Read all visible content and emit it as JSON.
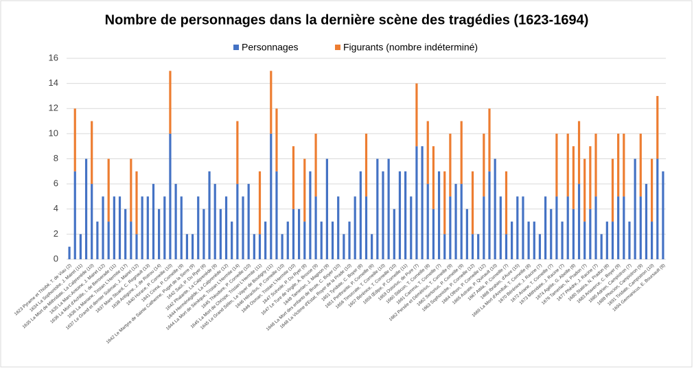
{
  "chart_data": {
    "type": "stacked_bar",
    "title": "Nombre de personnages dans la dernière scène des tragédies (1623-1694)",
    "categories": [
      "1623 Pyrame et Thisbé, T. de Viau (2)",
      null,
      "1634 La Sophonisbe, J. Mairet (11)",
      null,
      "1635 La Mort de Mithridate, La Calprenède (10)",
      null,
      "1635 La Marc-Antoine, J. Mairet (12)",
      null,
      "1636 La Mort d'Achille, I. de Benserade (11)",
      null,
      "1636 La Mariane, Tristan L'Hermite (17)",
      null,
      "1637 Le Grand et dernier Soliman, J. Mairet (12)",
      null,
      "1637 Mare Stuard, C. Regnault (13)",
      null,
      "1638 Antigone, J. de Rotrou (14)",
      null,
      "1640 Horace, P. Corneille (10)",
      null,
      "1641 Cinna, P. Corneille (9)",
      null,
      "1642 Le Martyre de Sainte Catherine, Puget de la Serre (9)",
      null,
      "1642 Saül, P. Du Ryer (6)",
      null,
      "1642 Phalante, La Calprenède (9)",
      null,
      "1644 Herménégilde, La Calprenède (12)",
      null,
      "1644 La Mort de Sénèque, Tristan L'Hermite (14)",
      null,
      "1645 Théodore, P. Corneille (10)",
      null,
      "1645 La Mort de Chrispe, Tristan L'Hermite (11)",
      null,
      "1645 Le Grand Sélim, Le Vayer de Boutigny (11)",
      null,
      "1646 Héraclius, P. Corneille (10)",
      null,
      "1646 Osman, Tristan L'Hermite (10)",
      null,
      "1647 Scévole, P. Du Ryer (8)",
      null,
      "1647 Le Ture de Virgile, A. Brosse (9)",
      null,
      "1648 Tamerlan, J. Magnon (9)",
      null,
      "1648 La Mort des enfants de Brute, C. Boyer (10)",
      null,
      "1648 La Victime d'Estat, Royer de la Prade (10)",
      null,
      "1651 Tyridate, C. Boyer (8)",
      null,
      "1651 Perthrarite, P. Corneille (6)",
      null,
      "1656 Timocrate, T. Corneille (10)",
      null,
      "1657 Bérénice, T. Corneille (10)",
      null,
      "1659 Œdipe, P. Corneille (11)",
      null,
      "1659 Ostorius, de Pure (7)",
      null,
      "1660 Stilicon, T. Corneille (8)",
      null,
      "1661 Camma, T. Corneille (7)",
      null,
      "1662 Persée et Démétrius, T. Corneille (9)",
      null,
      "1662 Sertorius, P. Corneille (9)",
      null,
      "1663 Sophonisbe, P. Corneille (12)",
      null,
      "1664 Othon, P. Corneille (12)",
      null,
      "1665 Astrate, P. Quinault (10)",
      null,
      "1667 Attila, P. Corneille (7)",
      null,
      "1668 Ibrahim, d'Aure (15)",
      null,
      "1669 La Mort d'Annibal, T. Corneille (8)",
      null,
      "1670 Bérénice, J. Racine (7)",
      null,
      "1672 Ariane, T. Corneille (7)",
      null,
      "1673 Mithridate, J. Racine (7)",
      null,
      "1674 Agélie, G. Abeille (8)",
      null,
      "1676 Tamerlan, N. Pradon (7)",
      null,
      "1677 Phèdre, J. Racine (7)",
      null,
      "1680 Statira, N. Pradon (8)",
      null,
      "1683 Artaxerce, C. Boyer (9)",
      null,
      "1685 Adrien, Campistron (7)",
      null,
      "1688 Phocion, Campistron (9)",
      null,
      "1691 Tiridate, Campistron (10)",
      null,
      "1694 Germanicus, E. Boursault (8)"
    ],
    "series": [
      {
        "name": "Personnages",
        "color": "#4472c4",
        "values": [
          1,
          7,
          2,
          8,
          6,
          3,
          5,
          3,
          5,
          5,
          4,
          3,
          2,
          5,
          5,
          6,
          4,
          5,
          10,
          6,
          5,
          2,
          2,
          5,
          4,
          7,
          6,
          4,
          5,
          3,
          6,
          5,
          6,
          2,
          2,
          3,
          10,
          7,
          2,
          3,
          4,
          4,
          3,
          7,
          5,
          3,
          8,
          3,
          5,
          2,
          3,
          5,
          7,
          5,
          2,
          8,
          7,
          8,
          4,
          7,
          7,
          5,
          9,
          9,
          6,
          4,
          7,
          2,
          5,
          6,
          6,
          4,
          2,
          2,
          5,
          7,
          8,
          5,
          2,
          3,
          5,
          5,
          3,
          3,
          2,
          5,
          4,
          5,
          3,
          5,
          4,
          6,
          3,
          4,
          5,
          2,
          3,
          3,
          5,
          5,
          3,
          8,
          5,
          6,
          3,
          8,
          7
        ]
      },
      {
        "name": "Figurants (nombre indéterminé)",
        "color": "#ed7d31",
        "values": [
          0,
          5,
          0,
          0,
          5,
          0,
          0,
          5,
          0,
          0,
          0,
          5,
          5,
          0,
          0,
          0,
          0,
          0,
          5,
          0,
          0,
          0,
          0,
          0,
          0,
          0,
          0,
          0,
          0,
          0,
          5,
          0,
          0,
          0,
          5,
          0,
          5,
          5,
          0,
          0,
          5,
          0,
          5,
          0,
          5,
          0,
          0,
          0,
          0,
          0,
          0,
          0,
          0,
          5,
          0,
          0,
          0,
          0,
          0,
          0,
          0,
          0,
          5,
          0,
          5,
          5,
          0,
          5,
          5,
          0,
          5,
          0,
          5,
          0,
          5,
          5,
          0,
          0,
          5,
          0,
          0,
          0,
          0,
          0,
          0,
          0,
          0,
          5,
          0,
          5,
          5,
          5,
          5,
          5,
          5,
          0,
          0,
          5,
          5,
          5,
          0,
          0,
          5,
          0,
          5,
          5,
          0
        ]
      }
    ],
    "ylim": [
      0,
      16
    ],
    "yticks": [
      0,
      2,
      4,
      6,
      8,
      10,
      12,
      14,
      16
    ],
    "grid": true,
    "legend": "top"
  }
}
